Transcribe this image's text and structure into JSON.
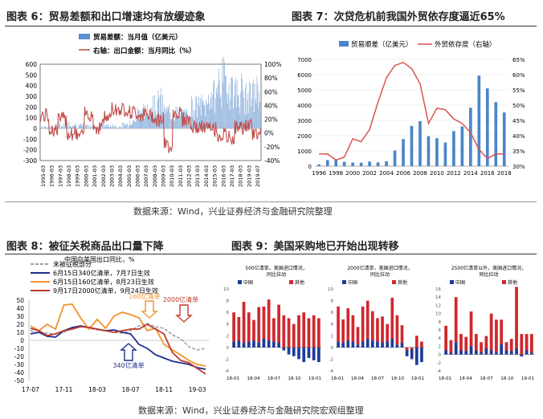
{
  "fig6": {
    "title": "图表 6：贸易差额和出口增速均有放缓迹象",
    "chart_data": {
      "type": "bar+line",
      "title": "贸易差额和出口增速均有放缓迹象",
      "legend": [
        "贸易差额：当月值（亿美元）",
        "右轴：出口金额：当月同比（%）"
      ],
      "left_axis": {
        "ticks": [
          -300,
          -200,
          -100,
          0,
          100,
          200,
          300,
          400,
          500,
          600
        ],
        "range": [
          -300,
          600
        ]
      },
      "right_axis": {
        "ticks": [
          "-40%",
          "-20%",
          "0%",
          "20%",
          "40%",
          "60%",
          "80%",
          "100%"
        ],
        "range": [
          -40,
          100
        ]
      },
      "x_ticks": [
        "1995-03",
        "1996-03",
        "1997-03",
        "1998-03",
        "1999-03",
        "2000-03",
        "2001-03",
        "2002-03",
        "2003-03",
        "2004-03",
        "2005-03",
        "2006-03",
        "2007-03",
        "2008-03",
        "2009-03",
        "2010-03",
        "2011-03",
        "2012-03",
        "2013-03",
        "2014-03",
        "2015-03",
        "2016-03",
        "2017-03",
        "2018-03",
        "2019-03",
        "2019-07"
      ],
      "years": [
        1995,
        1996,
        1997,
        1998,
        1999,
        2000,
        2001,
        2002,
        2003,
        2004,
        2005,
        2006,
        2007,
        2008,
        2009,
        2010,
        2011,
        2012,
        2013,
        2014,
        2015,
        2016,
        2017,
        2018,
        2019
      ],
      "trade_balance_typical": [
        15,
        12,
        35,
        40,
        28,
        20,
        20,
        25,
        18,
        30,
        80,
        150,
        220,
        250,
        160,
        140,
        130,
        220,
        220,
        320,
        450,
        420,
        350,
        300,
        330
      ],
      "export_yoy_typical": [
        25,
        5,
        20,
        0,
        -3,
        28,
        8,
        22,
        35,
        35,
        30,
        27,
        25,
        20,
        -18,
        30,
        20,
        8,
        8,
        6,
        -3,
        -7,
        8,
        10,
        0
      ]
    }
  },
  "fig7": {
    "title": "图表 7：次贷危机前我国外贸依存度逼近65%",
    "chart_data": {
      "type": "bar+line",
      "title": "次贷危机前我国外贸依存度逼近65%",
      "legend": [
        "贸易顺差（亿美元）",
        "外贸依存度（右轴）"
      ],
      "left_axis": {
        "ticks": [
          0,
          1000,
          2000,
          3000,
          4000,
          5000,
          6000,
          7000
        ],
        "range": [
          0,
          7000
        ]
      },
      "right_axis": {
        "ticks": [
          "30%",
          "35%",
          "40%",
          "45%",
          "50%",
          "55%",
          "60%",
          "65%"
        ],
        "range": [
          30,
          65
        ]
      },
      "x_ticks": [
        "1996",
        "1998",
        "2000",
        "2002",
        "2004",
        "2006",
        "2008",
        "2010",
        "2012",
        "2014",
        "2016",
        "2018"
      ],
      "x": [
        1996,
        1997,
        1998,
        1999,
        2000,
        2001,
        2002,
        2003,
        2004,
        2005,
        2006,
        2007,
        2008,
        2009,
        2010,
        2011,
        2012,
        2013,
        2014,
        2015,
        2016,
        2017,
        2018
      ],
      "trade_surplus": [
        120,
        400,
        430,
        290,
        240,
        230,
        300,
        250,
        320,
        1020,
        1780,
        2640,
        2950,
        1960,
        1830,
        1550,
        2300,
        2600,
        3830,
        5940,
        5100,
        4200,
        3520
      ],
      "dependence": [
        34,
        34,
        32,
        33,
        39,
        38,
        42,
        51,
        59,
        63,
        64,
        62,
        57,
        44,
        49,
        48.5,
        45.5,
        44,
        41,
        35.5,
        32.5,
        34,
        34
      ]
    }
  },
  "fig8": {
    "title": "图表 8：被征关税商品出口量下降",
    "chart_data": {
      "type": "line",
      "title": "中国向美国出口同比，%",
      "annotation_labels": [
        "160亿清单",
        "2000亿清单",
        "340亿清单"
      ],
      "legend": [
        "未被征税部分",
        "6月15日340亿清单，7月7日生效",
        "6月15日160亿清单，8月23日生效",
        "9月17日2000亿清单，9月24日生效"
      ],
      "y_ticks": [
        50,
        40,
        30,
        20,
        10,
        0,
        -10,
        -20,
        -30,
        -40,
        -50
      ],
      "y_range": [
        -50,
        50
      ],
      "x_ticks": [
        "17-07",
        "17-11",
        "18-03",
        "18-07",
        "18-11",
        "19-03"
      ],
      "months": [
        "17-07",
        "17-08",
        "17-09",
        "17-10",
        "17-11",
        "17-12",
        "18-01",
        "18-02",
        "18-03",
        "18-04",
        "18-05",
        "18-06",
        "18-07",
        "18-08",
        "18-09",
        "18-10",
        "18-11",
        "18-12",
        "19-01",
        "19-02",
        "19-03",
        "19-04"
      ],
      "series": [
        {
          "name": "未被征税部分",
          "values": [
            12,
            9,
            9,
            8,
            10,
            15,
            18,
            15,
            13,
            12,
            10,
            9,
            12,
            18,
            21,
            17,
            15,
            7,
            2,
            -8,
            -12,
            -10
          ]
        },
        {
          "name": "340亿清单",
          "values": [
            8,
            10,
            5,
            4,
            12,
            16,
            18,
            16,
            14,
            12,
            13,
            10,
            8,
            -5,
            -10,
            -18,
            -22,
            -26,
            -28,
            -30,
            -34,
            -36
          ]
        },
        {
          "name": "160亿清单",
          "values": [
            18,
            12,
            20,
            14,
            44,
            45,
            28,
            14,
            26,
            15,
            30,
            35,
            32,
            28,
            12,
            15,
            -5,
            -12,
            -18,
            -25,
            -30,
            -32
          ]
        },
        {
          "name": "2000亿清单",
          "values": [
            15,
            12,
            6,
            8,
            12,
            14,
            17,
            16,
            14,
            12,
            10,
            12,
            14,
            14,
            20,
            14,
            8,
            -15,
            -25,
            -28,
            -35,
            -42
          ]
        }
      ]
    }
  },
  "fig9": {
    "title": "图表 9：美国采购地已开始出现转移",
    "chart_data": [
      {
        "type": "bar",
        "title": "500亿清单，美国进口情况，同比拉动，%",
        "legend": [
          "中国",
          "其他"
        ],
        "y_ticks": [
          10,
          8,
          6,
          4,
          2,
          0,
          -2,
          -4
        ],
        "x_ticks": [
          "18-01",
          "18-04",
          "18-07",
          "18-10",
          "19-01"
        ],
        "china": [
          1,
          1.2,
          0.8,
          1,
          1.2,
          0.9,
          1.5,
          1.2,
          1,
          0.8,
          -0.5,
          -1.2,
          -1.5,
          -2,
          -2.5,
          -1.8,
          -2.2,
          -2.5
        ],
        "other": [
          5,
          4,
          7,
          5,
          3.5,
          6,
          5.5,
          7,
          4,
          6.5,
          5.5,
          5,
          4,
          5.5,
          6,
          5,
          5.5,
          5
        ]
      },
      {
        "type": "bar",
        "title": "2000亿清单，美国进口情况，同比拉动，%",
        "legend": [
          "中国",
          "其他"
        ],
        "y_ticks": [
          10,
          8,
          6,
          4,
          2,
          0,
          -2,
          -4
        ],
        "x_ticks": [
          "18-01",
          "18-04",
          "18-07",
          "18-10",
          "19-01"
        ],
        "china": [
          1,
          0.8,
          1.2,
          1,
          0.5,
          1,
          1.5,
          1.2,
          1,
          0.8,
          1,
          1.5,
          0.5,
          0.8,
          -1.5,
          -2,
          -3,
          -2.5
        ],
        "other": [
          6,
          4,
          5.5,
          4.5,
          3,
          6,
          6.5,
          5,
          4,
          4.5,
          3,
          7,
          5,
          3,
          -0.5,
          -0.3,
          2,
          1
        ]
      },
      {
        "type": "bar",
        "title": "2500亿清单以外，美国进口情况，同比拉动，%",
        "legend": [
          "中国",
          "其他"
        ],
        "y_ticks": [
          16,
          14,
          12,
          10,
          8,
          6,
          4,
          2,
          0,
          -2,
          -4
        ],
        "x_ticks": [
          "18-01",
          "18-04",
          "18-07",
          "18-10",
          "19-01"
        ],
        "china": [
          1,
          0.5,
          3,
          1,
          0.8,
          2,
          1,
          0.5,
          1.5,
          1,
          0.5,
          2.5,
          1,
          0.8,
          1.5,
          -0.5,
          1,
          0.5
        ],
        "other": [
          6,
          3,
          11,
          4,
          3.5,
          8.5,
          4,
          2.5,
          3,
          9,
          8,
          6,
          2,
          3,
          15,
          5,
          4,
          4.5
        ]
      }
    ]
  },
  "source_top": "数据来源：Wind，兴业证券经济与金融研究院整理",
  "source_bottom": "数据来源：Wind，兴业证券经济与金融研究院宏观组整理"
}
